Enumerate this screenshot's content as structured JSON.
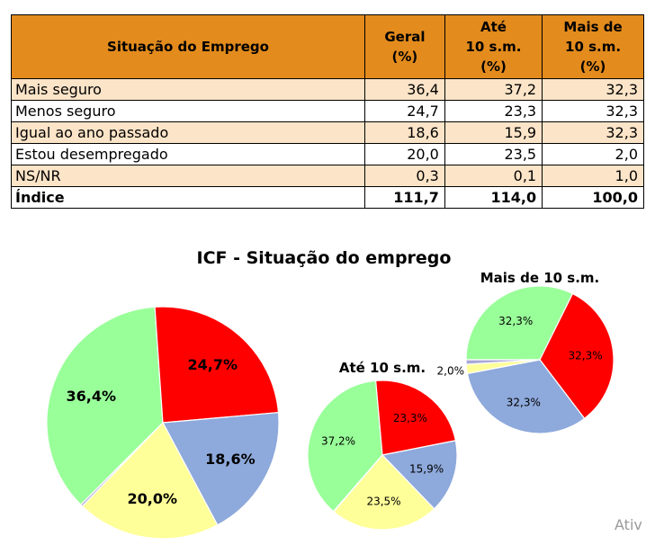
{
  "table": {
    "headers": [
      "Situação do Emprego",
      [
        "Geral",
        "(%)"
      ],
      [
        "Até",
        "10 s.m.",
        "(%)"
      ],
      [
        "Mais de",
        "10 s.m.",
        "(%)"
      ]
    ],
    "rows": [
      {
        "label": "Mais seguro",
        "values": [
          "36,4",
          "37,2",
          "32,3"
        ]
      },
      {
        "label": "Menos seguro",
        "values": [
          "24,7",
          "23,3",
          "32,3"
        ]
      },
      {
        "label": "Igual ao ano passado",
        "values": [
          "18,6",
          "15,9",
          "32,3"
        ]
      },
      {
        "label": "Estou desempregado",
        "values": [
          "20,0",
          "23,5",
          "2,0"
        ]
      },
      {
        "label": "NS/NR",
        "values": [
          "0,3",
          "0,1",
          "1,0"
        ]
      },
      {
        "label": "Índice",
        "values": [
          "111,7",
          "114,0",
          "100,0"
        ]
      }
    ]
  },
  "watermark": "Ativ",
  "chart_data": {
    "type": "pie",
    "title": "ICF - Situação do emprego",
    "categories": [
      "Mais seguro",
      "Menos seguro",
      "Igual ao ano passado",
      "Estou desempregado",
      "NS/NR"
    ],
    "colors": [
      "#99ff99",
      "#ff0000",
      "#8ea9db",
      "#ffff99",
      "#a9a9d6"
    ],
    "pies": [
      {
        "name": "",
        "values": [
          36.4,
          24.7,
          18.6,
          20.0,
          0.3
        ],
        "labels": [
          "36,4%",
          "24,7%",
          "18,6%",
          "20,0%",
          ""
        ]
      },
      {
        "name": "Até 10 s.m.",
        "values": [
          37.2,
          23.3,
          15.9,
          23.5,
          0.1
        ],
        "labels": [
          "37,2%",
          "23,3%",
          "15,9%",
          "23,5%",
          ""
        ]
      },
      {
        "name": "Mais de 10 s.m.",
        "values": [
          32.3,
          32.3,
          32.3,
          2.0,
          1.0
        ],
        "labels": [
          "32,3%",
          "32,3%",
          "32,3%",
          "2,0%",
          ""
        ]
      }
    ]
  }
}
